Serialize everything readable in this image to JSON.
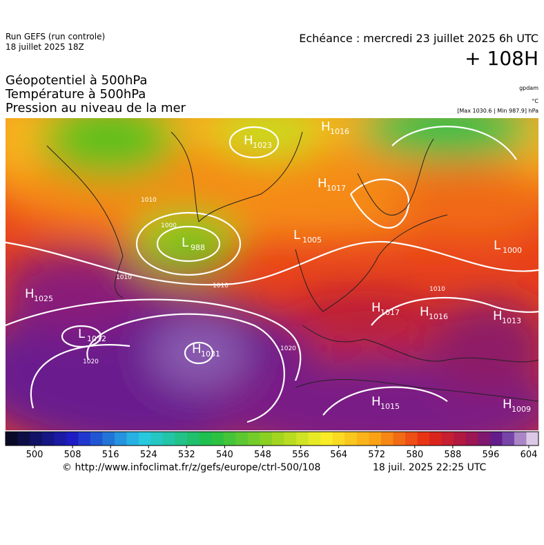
{
  "header": {
    "run": "Run GEFS (run controle)",
    "run_date": "18 juillet 2025 18Z",
    "valid": "Echéance : mercredi 23 juillet 2025 6h UTC",
    "lead": "+ 108H"
  },
  "titles": [
    "Géopotentiel à 500hPa",
    "Température à 500hPa",
    "Pression au niveau de la mer"
  ],
  "units": {
    "geopotential": "gpdam",
    "temperature": "°C",
    "pressure": "[Max 1030.6 | Min 987.9] hPa"
  },
  "pressure_centers": [
    {
      "letter": "H",
      "value": 1023
    },
    {
      "letter": "H",
      "value": 1016
    },
    {
      "letter": "H",
      "value": 1017
    },
    {
      "letter": "L",
      "value": 988
    },
    {
      "letter": "L",
      "value": 1005
    },
    {
      "letter": "L",
      "value": 1000
    },
    {
      "letter": "H",
      "value": 1025
    },
    {
      "letter": "L",
      "value": 1012
    },
    {
      "letter": "H",
      "value": 1031
    },
    {
      "letter": "H",
      "value": 1017
    },
    {
      "letter": "H",
      "value": 1016
    },
    {
      "letter": "H",
      "value": 1013
    },
    {
      "letter": "H",
      "value": 1015
    },
    {
      "letter": "H",
      "value": 1009
    }
  ],
  "isobar_labels": [
    1000,
    1010,
    1010,
    1010,
    1020,
    1020,
    1010
  ],
  "colorbar": {
    "ticks": [
      500,
      508,
      516,
      524,
      532,
      540,
      548,
      556,
      564,
      572,
      580,
      588,
      596,
      604
    ]
  },
  "footer": {
    "source": "© http://www.infoclimat.fr/z/gefs/europe/ctrl-500/108",
    "generated": "18 juil. 2025 22:25 UTC"
  }
}
